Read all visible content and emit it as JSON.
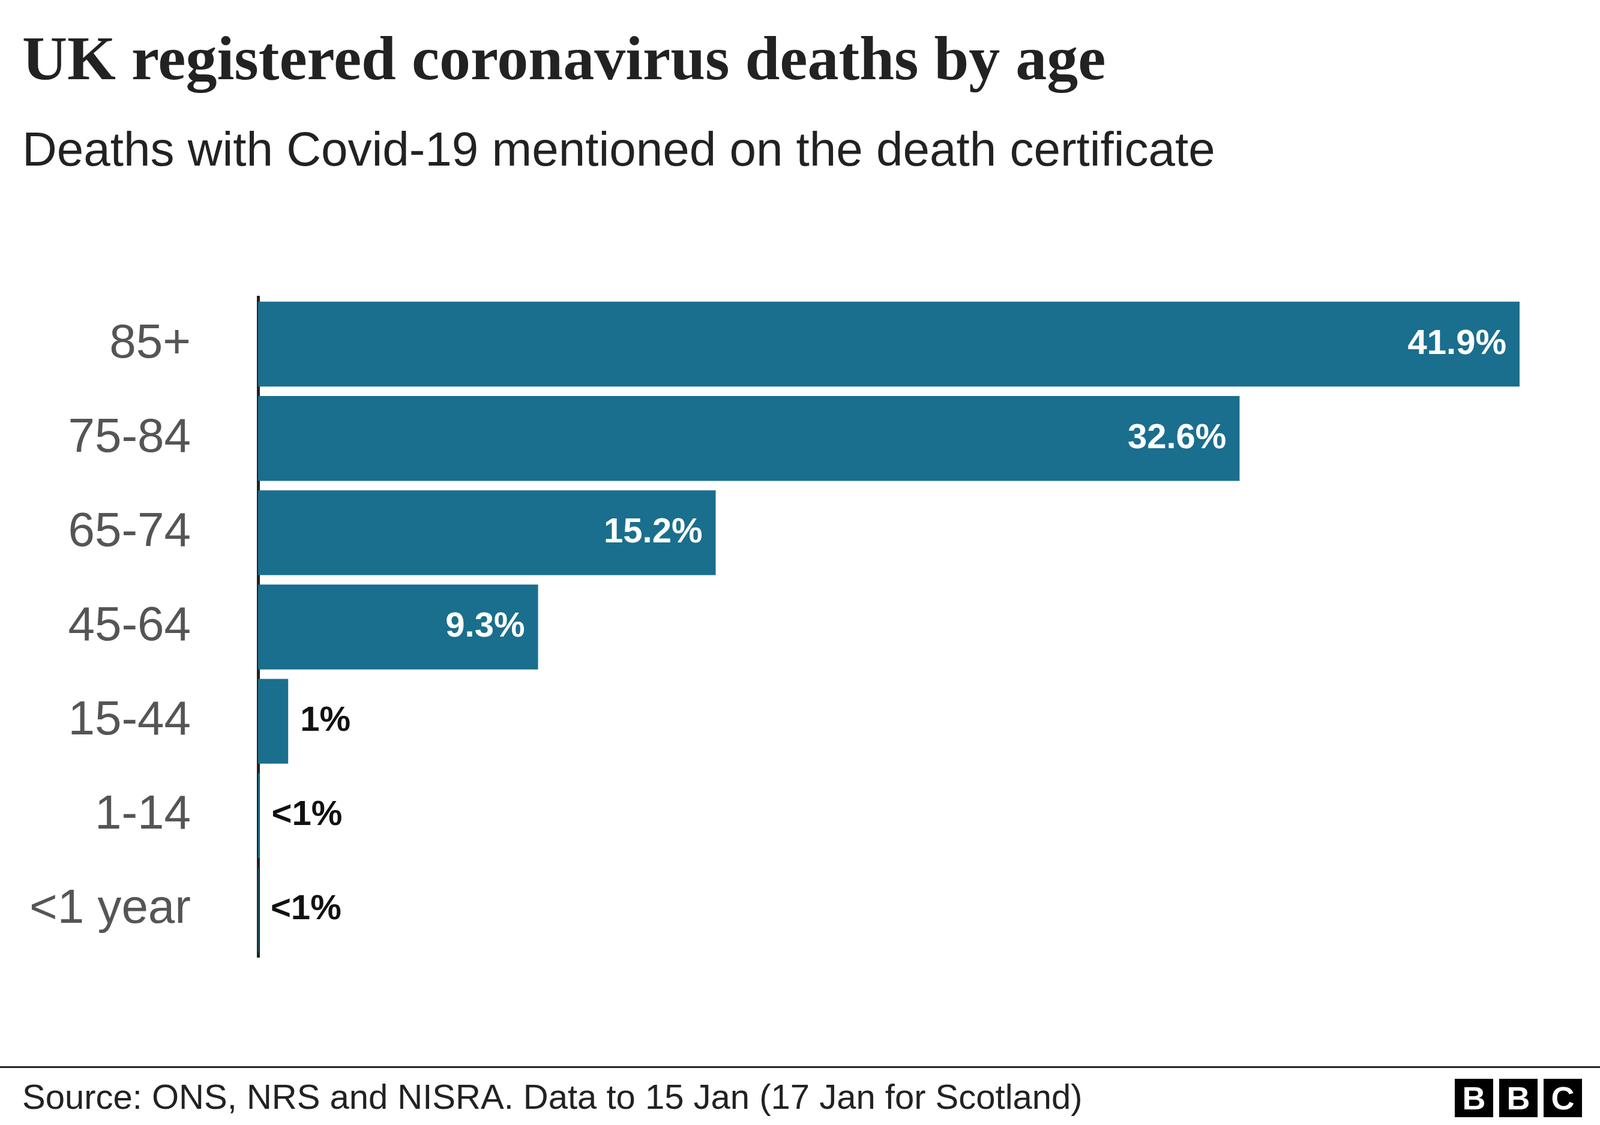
{
  "chart_data": {
    "type": "bar",
    "orientation": "horizontal",
    "title": "UK registered coronavirus deaths by age",
    "subtitle": "Deaths with Covid-19 mentioned on the death certificate",
    "categories": [
      "85+",
      "75-84",
      "65-74",
      "45-64",
      "15-44",
      "1-14",
      "<1 year"
    ],
    "values": [
      41.9,
      32.6,
      15.2,
      9.3,
      1,
      0.05,
      0.02
    ],
    "value_labels": [
      "41.9%",
      "32.6%",
      "15.2%",
      "9.3%",
      "1%",
      "<1%",
      "<1%"
    ],
    "data_labels": true,
    "color": "#1a6e8e",
    "xlim": [
      0,
      42
    ],
    "grid": false,
    "tick_labels": "y",
    "source": "Source: ONS, NRS and NISRA. Data to 15 Jan (17 Jan for Scotland)",
    "logo": "BBC"
  }
}
